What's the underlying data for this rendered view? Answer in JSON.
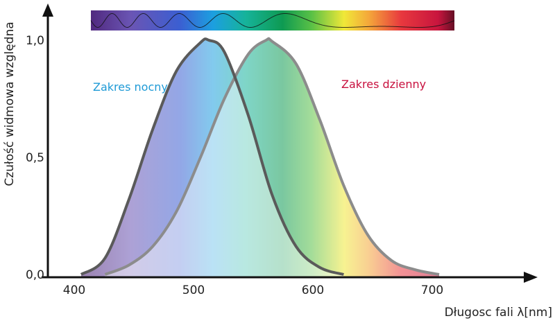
{
  "chart_data": {
    "type": "area",
    "title": "",
    "xlabel": "Długosc fali λ[nm]",
    "ylabel": "Czułość widmowa względna",
    "xlim": [
      375,
      780
    ],
    "ylim": [
      0,
      1.0
    ],
    "x_ticks": [
      {
        "value": 400,
        "label": "400"
      },
      {
        "value": 500,
        "label": "500"
      },
      {
        "value": 600,
        "label": "600"
      },
      {
        "value": 700,
        "label": "700"
      }
    ],
    "y_ticks": [
      {
        "value": 0.0,
        "label": "0,0"
      },
      {
        "value": 0.5,
        "label": "0,5"
      },
      {
        "value": 1.0,
        "label": "1,0"
      }
    ],
    "spectrum_bar": {
      "from_nm": 380,
      "to_nm": 700
    },
    "series": [
      {
        "name": "Zakres nocny",
        "color": "#1e9ad6",
        "peak_nm": 507,
        "x": [
          400,
          420,
          440,
          460,
          480,
          500,
          507,
          520,
          540,
          560,
          580,
          600,
          620
        ],
        "values": [
          0.0,
          0.07,
          0.32,
          0.62,
          0.87,
          0.99,
          1.0,
          0.95,
          0.68,
          0.34,
          0.12,
          0.03,
          0.0
        ]
      },
      {
        "name": "Zakres dzienny",
        "color": "#c8103e",
        "peak_nm": 555,
        "x": [
          420,
          440,
          460,
          480,
          500,
          520,
          540,
          555,
          560,
          580,
          600,
          620,
          640,
          660,
          680,
          700
        ],
        "values": [
          0.0,
          0.04,
          0.12,
          0.27,
          0.5,
          0.75,
          0.94,
          1.0,
          0.995,
          0.9,
          0.66,
          0.38,
          0.17,
          0.06,
          0.02,
          0.0
        ]
      }
    ]
  }
}
